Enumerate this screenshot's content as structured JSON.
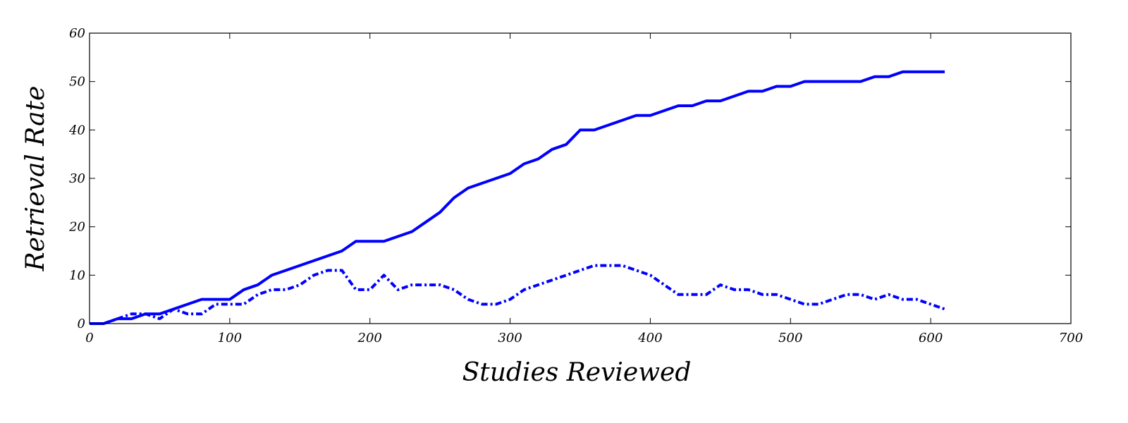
{
  "chart_data": {
    "type": "line",
    "title": "",
    "xlabel": "Studies Reviewed",
    "ylabel": "Retrieval Rate",
    "xlim": [
      0,
      700
    ],
    "ylim": [
      0,
      60
    ],
    "x_ticks": [
      "0",
      "100",
      "200",
      "300",
      "400",
      "500",
      "600",
      "700"
    ],
    "y_ticks": [
      "0",
      "10",
      "20",
      "30",
      "40",
      "50",
      "60"
    ],
    "grid": false,
    "legend": "none",
    "color": "#0000ff",
    "x": [
      0,
      10,
      20,
      30,
      40,
      50,
      60,
      70,
      80,
      90,
      100,
      110,
      120,
      130,
      140,
      150,
      160,
      170,
      180,
      190,
      200,
      210,
      220,
      230,
      240,
      250,
      260,
      270,
      280,
      290,
      300,
      310,
      320,
      330,
      340,
      350,
      360,
      370,
      380,
      390,
      400,
      410,
      420,
      430,
      440,
      450,
      460,
      470,
      480,
      490,
      500,
      510,
      520,
      530,
      540,
      550,
      560,
      570,
      580,
      590,
      600,
      610
    ],
    "series": [
      {
        "style": "solid",
        "values": [
          0,
          0,
          1,
          1,
          2,
          2,
          3,
          4,
          5,
          5,
          5,
          7,
          8,
          10,
          11,
          12,
          13,
          14,
          15,
          17,
          17,
          17,
          18,
          19,
          21,
          23,
          26,
          28,
          29,
          30,
          31,
          33,
          34,
          36,
          37,
          40,
          40,
          41,
          42,
          43,
          43,
          44,
          45,
          45,
          46,
          46,
          47,
          48,
          48,
          49,
          49,
          50,
          50,
          50,
          50,
          50,
          51,
          51,
          52,
          52,
          52,
          52
        ]
      },
      {
        "style": "dash-dot",
        "values": [
          0,
          0,
          1,
          2,
          2,
          1,
          3,
          2,
          2,
          4,
          4,
          4,
          6,
          7,
          7,
          8,
          10,
          11,
          11,
          7,
          7,
          10,
          7,
          8,
          8,
          8,
          7,
          5,
          4,
          4,
          5,
          7,
          8,
          9,
          10,
          11,
          12,
          12,
          12,
          11,
          10,
          8,
          6,
          6,
          6,
          8,
          7,
          7,
          6,
          6,
          5,
          4,
          4,
          5,
          6,
          6,
          5,
          6,
          5,
          5,
          4,
          3
        ]
      }
    ]
  }
}
